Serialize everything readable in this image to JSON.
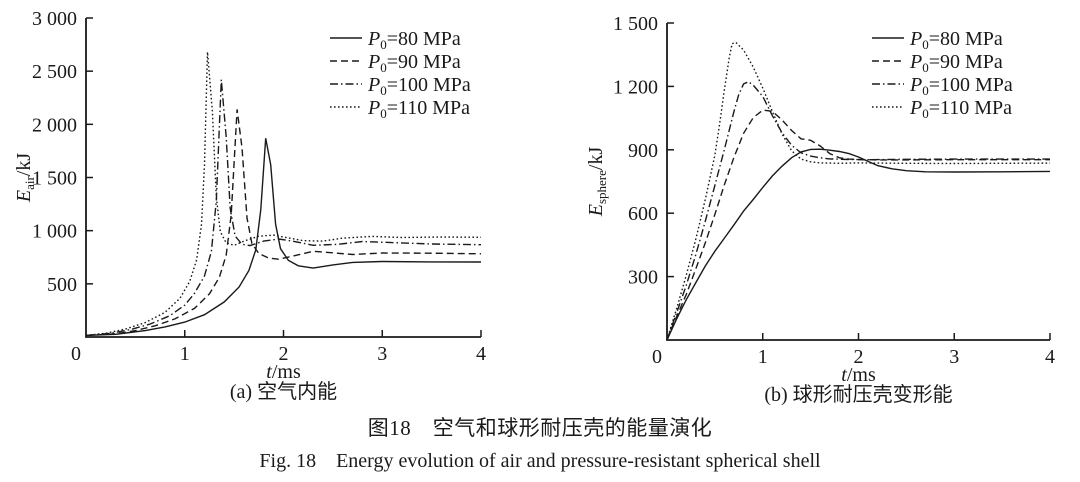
{
  "figure": {
    "caption_zh": "图18　空气和球形耐压壳的能量演化",
    "caption_en": "Fig. 18　Energy evolution of air and pressure-resistant spherical shell"
  },
  "line_color": "#1a1a1a",
  "chart_data": [
    {
      "id": "air",
      "type": "line",
      "subcaption": "(a) 空气内能",
      "xlabel": {
        "var": "t",
        "unit": "/ms"
      },
      "ylabel": {
        "var": "E",
        "sub": "air",
        "unit": "/kJ"
      },
      "xlim": [
        0,
        4
      ],
      "ylim": [
        0,
        3000
      ],
      "grid": false,
      "legend_position": "top-right-inside",
      "xticks": [
        {
          "v": 0,
          "label": "0"
        },
        {
          "v": 1,
          "label": "1"
        },
        {
          "v": 2,
          "label": "2"
        },
        {
          "v": 3,
          "label": "3"
        },
        {
          "v": 4,
          "label": "4"
        }
      ],
      "yticks": [
        {
          "v": 500,
          "label": "500"
        },
        {
          "v": 1000,
          "label": "1 000"
        },
        {
          "v": 1500,
          "label": "1 500"
        },
        {
          "v": 2000,
          "label": "2 000"
        },
        {
          "v": 2500,
          "label": "2 500"
        },
        {
          "v": 3000,
          "label": "3 000"
        }
      ],
      "series": [
        {
          "name": "P0=80 MPa",
          "label": {
            "var": "P",
            "sub": "0",
            "rest": "=80 MPa"
          },
          "style": "solid",
          "points": [
            [
              0,
              15
            ],
            [
              0.3,
              25
            ],
            [
              0.6,
              60
            ],
            [
              0.8,
              95
            ],
            [
              1.0,
              140
            ],
            [
              1.2,
              210
            ],
            [
              1.4,
              330
            ],
            [
              1.55,
              470
            ],
            [
              1.65,
              625
            ],
            [
              1.72,
              820
            ],
            [
              1.77,
              1200
            ],
            [
              1.82,
              1870
            ],
            [
              1.87,
              1620
            ],
            [
              1.92,
              1060
            ],
            [
              1.97,
              830
            ],
            [
              2.05,
              720
            ],
            [
              2.15,
              670
            ],
            [
              2.3,
              648
            ],
            [
              2.5,
              678
            ],
            [
              2.7,
              702
            ],
            [
              3.0,
              710
            ],
            [
              3.5,
              706
            ],
            [
              4.0,
              705
            ]
          ]
        },
        {
          "name": "P0=90 MPa",
          "label": {
            "var": "P",
            "sub": "0",
            "rest": "=90 MPa"
          },
          "style": "dashed",
          "points": [
            [
              0,
              15
            ],
            [
              0.3,
              30
            ],
            [
              0.5,
              60
            ],
            [
              0.7,
              105
            ],
            [
              0.9,
              170
            ],
            [
              1.1,
              270
            ],
            [
              1.25,
              405
            ],
            [
              1.35,
              560
            ],
            [
              1.42,
              770
            ],
            [
              1.47,
              1150
            ],
            [
              1.53,
              2140
            ],
            [
              1.58,
              1780
            ],
            [
              1.63,
              1120
            ],
            [
              1.68,
              880
            ],
            [
              1.75,
              785
            ],
            [
              1.85,
              742
            ],
            [
              1.95,
              732
            ],
            [
              2.1,
              762
            ],
            [
              2.3,
              806
            ],
            [
              2.5,
              792
            ],
            [
              2.7,
              776
            ],
            [
              3.0,
              790
            ],
            [
              3.5,
              788
            ],
            [
              4.0,
              782
            ]
          ]
        },
        {
          "name": "P0=100 MPa",
          "label": {
            "var": "P",
            "sub": "0",
            "rest": "=100 MPa"
          },
          "style": "dashdot",
          "points": [
            [
              0,
              15
            ],
            [
              0.25,
              35
            ],
            [
              0.45,
              70
            ],
            [
              0.65,
              122
            ],
            [
              0.85,
              200
            ],
            [
              1.0,
              300
            ],
            [
              1.1,
              412
            ],
            [
              1.2,
              575
            ],
            [
              1.27,
              805
            ],
            [
              1.32,
              1280
            ],
            [
              1.37,
              2420
            ],
            [
              1.42,
              1880
            ],
            [
              1.46,
              1210
            ],
            [
              1.51,
              950
            ],
            [
              1.58,
              872
            ],
            [
              1.66,
              860
            ],
            [
              1.8,
              902
            ],
            [
              1.95,
              922
            ],
            [
              2.1,
              900
            ],
            [
              2.3,
              862
            ],
            [
              2.55,
              872
            ],
            [
              2.8,
              898
            ],
            [
              3.1,
              888
            ],
            [
              3.5,
              875
            ],
            [
              4.0,
              868
            ]
          ]
        },
        {
          "name": "P0=110 MPa",
          "label": {
            "var": "P",
            "sub": "0",
            "rest": "=110 MPa"
          },
          "style": "dotted",
          "points": [
            [
              0,
              15
            ],
            [
              0.2,
              35
            ],
            [
              0.4,
              75
            ],
            [
              0.6,
              135
            ],
            [
              0.8,
              232
            ],
            [
              0.95,
              362
            ],
            [
              1.05,
              522
            ],
            [
              1.12,
              725
            ],
            [
              1.17,
              1060
            ],
            [
              1.2,
              1620
            ],
            [
              1.23,
              2680
            ],
            [
              1.28,
              2120
            ],
            [
              1.32,
              1320
            ],
            [
              1.36,
              990
            ],
            [
              1.42,
              885
            ],
            [
              1.5,
              862
            ],
            [
              1.6,
              902
            ],
            [
              1.75,
              948
            ],
            [
              1.9,
              958
            ],
            [
              2.05,
              932
            ],
            [
              2.2,
              906
            ],
            [
              2.4,
              902
            ],
            [
              2.6,
              930
            ],
            [
              2.9,
              946
            ],
            [
              3.2,
              936
            ],
            [
              3.6,
              940
            ],
            [
              4.0,
              938
            ]
          ]
        }
      ]
    },
    {
      "id": "sphere",
      "type": "line",
      "subcaption": "(b) 球形耐压壳变形能",
      "xlabel": {
        "var": "t",
        "unit": "/ms"
      },
      "ylabel": {
        "var": "E",
        "sub": "sphere",
        "unit": "/kJ"
      },
      "xlim": [
        0,
        4
      ],
      "ylim": [
        0,
        1500
      ],
      "grid": false,
      "legend_position": "top-right-inside",
      "xticks": [
        {
          "v": 0,
          "label": "0"
        },
        {
          "v": 1,
          "label": "1"
        },
        {
          "v": 2,
          "label": "2"
        },
        {
          "v": 3,
          "label": "3"
        },
        {
          "v": 4,
          "label": "4"
        }
      ],
      "yticks": [
        {
          "v": 300,
          "label": "300"
        },
        {
          "v": 600,
          "label": "600"
        },
        {
          "v": 900,
          "label": "900"
        },
        {
          "v": 1200,
          "label": "1 200"
        },
        {
          "v": 1500,
          "label": "1 500"
        }
      ],
      "series": [
        {
          "name": "P0=80 MPa",
          "label": {
            "var": "P",
            "sub": "0",
            "rest": "=80 MPa"
          },
          "style": "solid",
          "points": [
            [
              0,
              0
            ],
            [
              0.05,
              50
            ],
            [
              0.1,
              100
            ],
            [
              0.2,
              190
            ],
            [
              0.3,
              270
            ],
            [
              0.4,
              350
            ],
            [
              0.5,
              420
            ],
            [
              0.6,
              482
            ],
            [
              0.7,
              545
            ],
            [
              0.8,
              610
            ],
            [
              0.9,
              665
            ],
            [
              1.0,
              722
            ],
            [
              1.1,
              776
            ],
            [
              1.2,
              822
            ],
            [
              1.3,
              862
            ],
            [
              1.4,
              890
            ],
            [
              1.5,
              902
            ],
            [
              1.6,
              903
            ],
            [
              1.7,
              898
            ],
            [
              1.8,
              892
            ],
            [
              1.9,
              882
            ],
            [
              2.0,
              866
            ],
            [
              2.1,
              845
            ],
            [
              2.2,
              825
            ],
            [
              2.35,
              810
            ],
            [
              2.5,
              801
            ],
            [
              2.7,
              796
            ],
            [
              3.0,
              795
            ],
            [
              3.5,
              796
            ],
            [
              4.0,
              798
            ]
          ]
        },
        {
          "name": "P0=90 MPa",
          "label": {
            "var": "P",
            "sub": "0",
            "rest": "=90 MPa"
          },
          "style": "dashed",
          "points": [
            [
              0,
              0
            ],
            [
              0.05,
              58
            ],
            [
              0.1,
              110
            ],
            [
              0.2,
              215
            ],
            [
              0.3,
              335
            ],
            [
              0.4,
              460
            ],
            [
              0.5,
              595
            ],
            [
              0.6,
              735
            ],
            [
              0.7,
              865
            ],
            [
              0.8,
              978
            ],
            [
              0.9,
              1052
            ],
            [
              1.0,
              1088
            ],
            [
              1.1,
              1082
            ],
            [
              1.2,
              1042
            ],
            [
              1.3,
              992
            ],
            [
              1.4,
              952
            ],
            [
              1.5,
              945
            ],
            [
              1.6,
              918
            ],
            [
              1.7,
              882
            ],
            [
              1.8,
              862
            ],
            [
              1.9,
              856
            ],
            [
              2.0,
              854
            ],
            [
              2.2,
              852
            ],
            [
              2.5,
              852
            ],
            [
              3.0,
              853
            ],
            [
              3.5,
              853
            ],
            [
              4.0,
              853
            ]
          ]
        },
        {
          "name": "P0=100 MPa",
          "label": {
            "var": "P",
            "sub": "0",
            "rest": "=100 MPa"
          },
          "style": "dashdot",
          "points": [
            [
              0,
              0
            ],
            [
              0.05,
              66
            ],
            [
              0.1,
              128
            ],
            [
              0.2,
              258
            ],
            [
              0.3,
              402
            ],
            [
              0.4,
              562
            ],
            [
              0.5,
              732
            ],
            [
              0.6,
              902
            ],
            [
              0.7,
              1082
            ],
            [
              0.75,
              1162
            ],
            [
              0.8,
              1212
            ],
            [
              0.85,
              1222
            ],
            [
              0.9,
              1206
            ],
            [
              1.0,
              1152
            ],
            [
              1.1,
              1062
            ],
            [
              1.2,
              982
            ],
            [
              1.3,
              922
            ],
            [
              1.4,
              886
            ],
            [
              1.5,
              870
            ],
            [
              1.6,
              862
            ],
            [
              1.7,
              857
            ],
            [
              1.9,
              854
            ],
            [
              2.1,
              853
            ],
            [
              2.5,
              855
            ],
            [
              3.0,
              856
            ],
            [
              3.5,
              856
            ],
            [
              4.0,
              856
            ]
          ]
        },
        {
          "name": "P0=110 MPa",
          "label": {
            "var": "P",
            "sub": "0",
            "rest": "=110 MPa"
          },
          "style": "dotted",
          "points": [
            [
              0,
              0
            ],
            [
              0.05,
              76
            ],
            [
              0.1,
              148
            ],
            [
              0.2,
              305
            ],
            [
              0.3,
              475
            ],
            [
              0.4,
              665
            ],
            [
              0.5,
              875
            ],
            [
              0.55,
              1025
            ],
            [
              0.6,
              1185
            ],
            [
              0.65,
              1335
            ],
            [
              0.68,
              1402
            ],
            [
              0.72,
              1408
            ],
            [
              0.8,
              1372
            ],
            [
              0.9,
              1292
            ],
            [
              1.0,
              1192
            ],
            [
              1.1,
              1082
            ],
            [
              1.2,
              976
            ],
            [
              1.3,
              896
            ],
            [
              1.4,
              856
            ],
            [
              1.5,
              843
            ],
            [
              1.6,
              838
            ],
            [
              1.8,
              836
            ],
            [
              2.0,
              838
            ],
            [
              2.5,
              836
            ],
            [
              3.0,
              835
            ],
            [
              3.5,
              836
            ],
            [
              4.0,
              837
            ]
          ]
        }
      ]
    }
  ]
}
